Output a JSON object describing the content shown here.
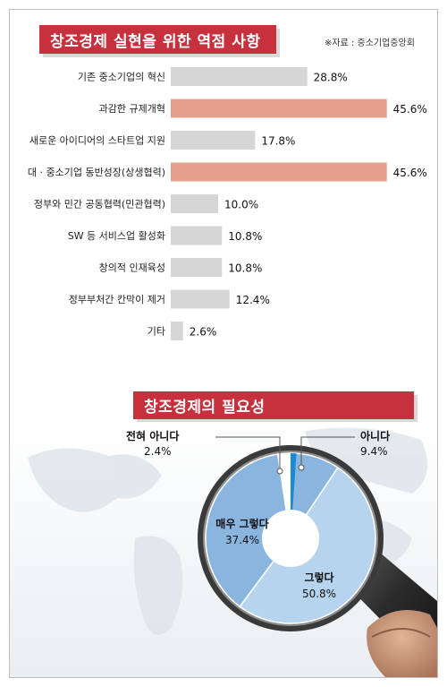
{
  "header": {
    "title": "창조경제 실현을 위한 역점 사항",
    "source": "※자료 : 중소기업중앙회"
  },
  "pie_header": {
    "title": "창조경제의 필요성"
  },
  "colors": {
    "title_bg": "#c7303d",
    "bar_gray": "#d6d6d6",
    "bar_highlight": "#e4a08c",
    "pie_light": "#b7d4ef",
    "pie_mid": "#8ab5df",
    "pie_accent": "#1a8ad4"
  },
  "chart_data": [
    {
      "type": "bar",
      "orientation": "horizontal",
      "title": "창조경제 실현을 위한 역점 사항",
      "categories": [
        "기존 중소기업의 혁신",
        "과감한 규제개혁",
        "새로운 아이디어의 스타트업 지원",
        "대 · 중소기업 동반성장(상생협력)",
        "정부와 민간 공동협력(민관협력)",
        "SW 등 서비스업 활성화",
        "창의적 인재육성",
        "정부부처간 칸막이 제거",
        "기타"
      ],
      "values": [
        28.8,
        45.6,
        17.8,
        45.6,
        10.0,
        10.8,
        10.8,
        12.4,
        2.6
      ],
      "value_labels": [
        "28.8%",
        "45.6%",
        "17.8%",
        "45.6%",
        "10.0%",
        "10.8%",
        "10.8%",
        "12.4%",
        "2.6%"
      ],
      "highlighted": [
        false,
        true,
        false,
        true,
        false,
        false,
        false,
        false,
        false
      ]
    },
    {
      "type": "pie",
      "style": "donut",
      "title": "창조경제의 필요성",
      "slices": [
        {
          "label": "아니다",
          "value": 9.4,
          "value_label": "9.4%"
        },
        {
          "label": "그렇다",
          "value": 50.8,
          "value_label": "50.8%"
        },
        {
          "label": "매우 그렇다",
          "value": 37.4,
          "value_label": "37.4%"
        },
        {
          "label": "전혀 아니다",
          "value": 2.4,
          "value_label": "2.4%"
        }
      ]
    }
  ]
}
